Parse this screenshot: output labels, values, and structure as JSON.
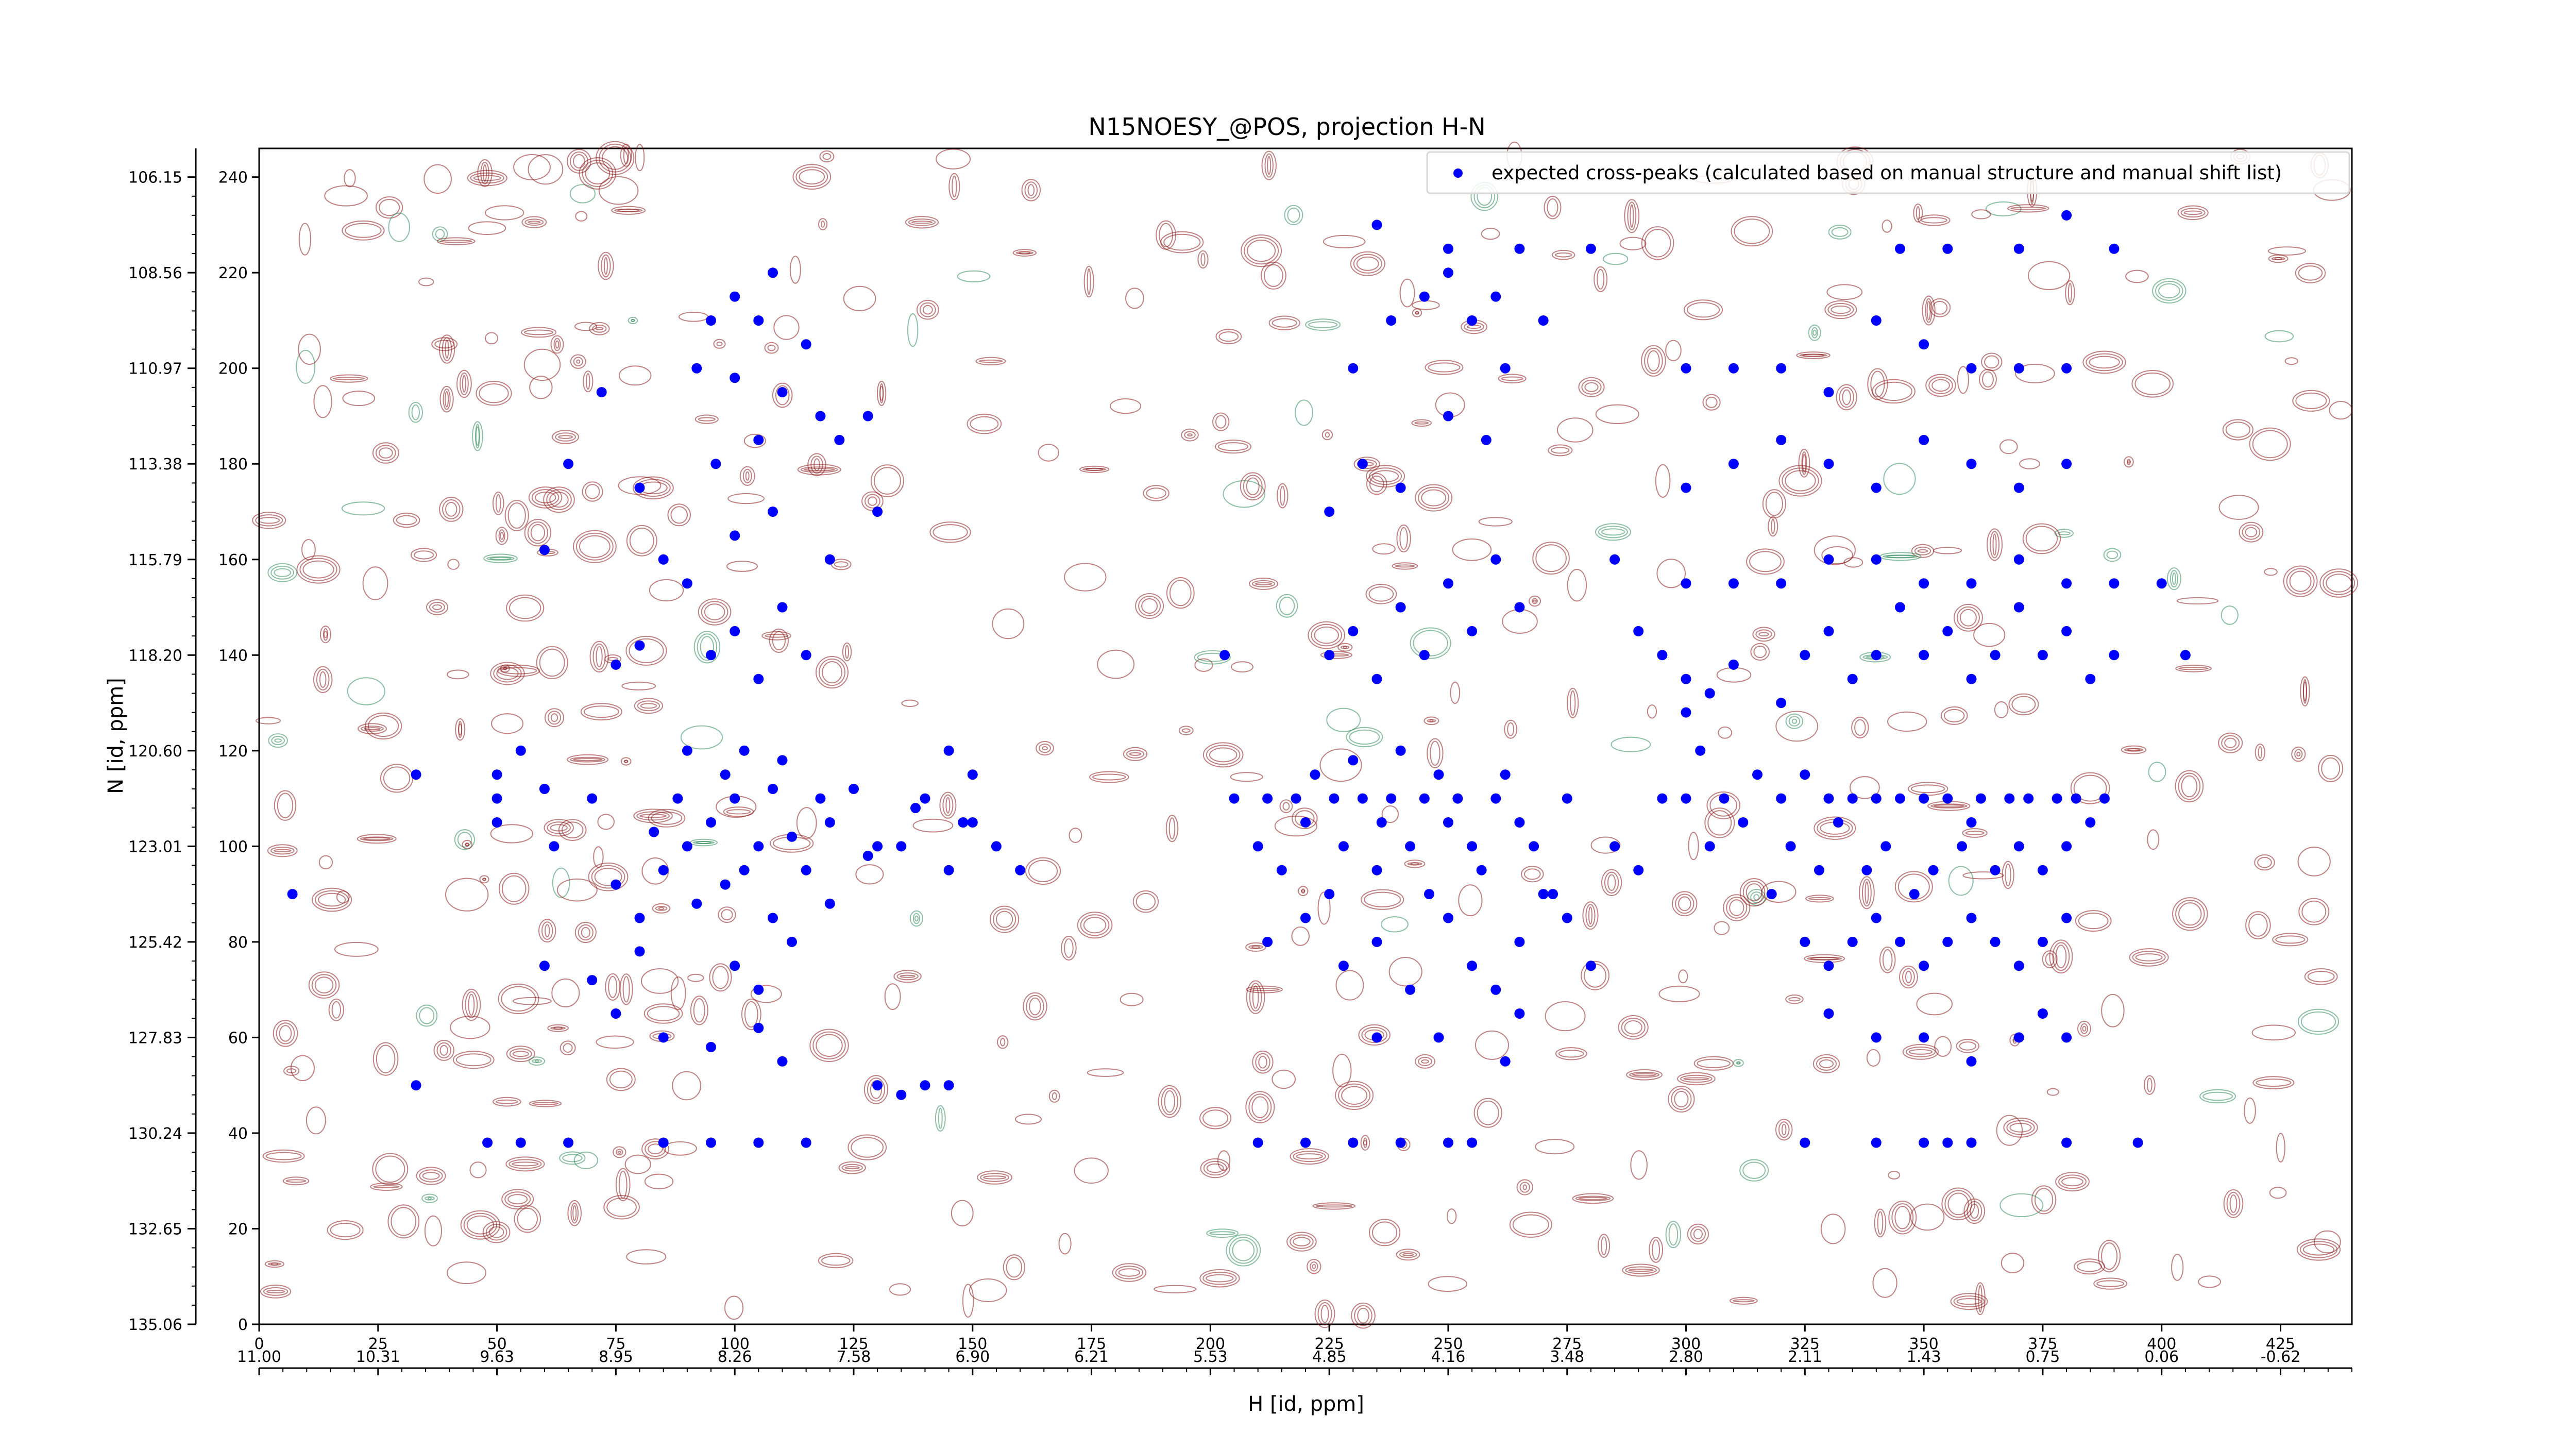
{
  "chart_data": {
    "type": "scatter",
    "title": "N15NOESY_@POS, projection H-N",
    "xlabel_primary": "",
    "xlabel_secondary": "H [id, ppm]",
    "ylabel_left": "N [id, ppm]",
    "x_index_range": [
      0,
      440
    ],
    "y_index_range": [
      0,
      246
    ],
    "x_ticks_index": [
      "0",
      "25",
      "50",
      "75",
      "100",
      "125",
      "150",
      "175",
      "200",
      "225",
      "250",
      "275",
      "300",
      "325",
      "350",
      "375",
      "400",
      "425"
    ],
    "x_ticks_ppm": [
      "11.00",
      "10.31",
      "9.63",
      "8.95",
      "8.26",
      "7.58",
      "6.90",
      "6.21",
      "5.53",
      "4.85",
      "4.16",
      "3.48",
      "2.80",
      "2.11",
      "1.43",
      "0.75",
      "0.06",
      "-0.62"
    ],
    "y_ticks_index": [
      "0",
      "20",
      "40",
      "60",
      "80",
      "100",
      "120",
      "140",
      "160",
      "180",
      "200",
      "220",
      "240"
    ],
    "y_ticks_ppm": [
      "135.06",
      "132.65",
      "130.24",
      "127.83",
      "125.42",
      "123.01",
      "120.60",
      "118.20",
      "115.79",
      "113.38",
      "110.97",
      "108.56",
      "106.15"
    ],
    "legend": {
      "position": "top-right",
      "label": "expected cross-peaks (calculated based on manual structure and manual shift list)",
      "marker_color": "#0000ff"
    },
    "colors": {
      "positive_contours": "#8b1a1a",
      "negative_contours": "#2e8b57",
      "peaks": "#0000ff"
    },
    "series": [
      {
        "name": "expected cross-peaks (calculated based on manual structure and manual shift list)",
        "points": [
          [
            7,
            90
          ],
          [
            33,
            50
          ],
          [
            33,
            115
          ],
          [
            48,
            38
          ],
          [
            50,
            105
          ],
          [
            50,
            110
          ],
          [
            50,
            115
          ],
          [
            55,
            120
          ],
          [
            60,
            75
          ],
          [
            60,
            112
          ],
          [
            62,
            100
          ],
          [
            70,
            110
          ],
          [
            75,
            92
          ],
          [
            80,
            85
          ],
          [
            83,
            103
          ],
          [
            85,
            95
          ],
          [
            88,
            110
          ],
          [
            90,
            100
          ],
          [
            90,
            120
          ],
          [
            92,
            88
          ],
          [
            95,
            105
          ],
          [
            98,
            115
          ],
          [
            98,
            92
          ],
          [
            100,
            110
          ],
          [
            102,
            120
          ],
          [
            102,
            95
          ],
          [
            105,
            100
          ],
          [
            108,
            112
          ],
          [
            108,
            85
          ],
          [
            110,
            118
          ],
          [
            112,
            102
          ],
          [
            115,
            95
          ],
          [
            118,
            110
          ],
          [
            120,
            105
          ],
          [
            125,
            112
          ],
          [
            128,
            98
          ],
          [
            135,
            100
          ],
          [
            140,
            110
          ],
          [
            145,
            95
          ],
          [
            148,
            105
          ],
          [
            150,
            115
          ],
          [
            95,
            140
          ],
          [
            100,
            145
          ],
          [
            105,
            135
          ],
          [
            110,
            150
          ],
          [
            115,
            140
          ],
          [
            120,
            160
          ],
          [
            90,
            155
          ],
          [
            85,
            160
          ],
          [
            80,
            142
          ],
          [
            75,
            138
          ],
          [
            100,
            165
          ],
          [
            108,
            170
          ],
          [
            96,
            180
          ],
          [
            105,
            185
          ],
          [
            92,
            200
          ],
          [
            100,
            198
          ],
          [
            110,
            195
          ],
          [
            115,
            205
          ],
          [
            95,
            210
          ],
          [
            100,
            215
          ],
          [
            105,
            210
          ],
          [
            108,
            220
          ],
          [
            72,
            195
          ],
          [
            65,
            180
          ],
          [
            60,
            162
          ],
          [
            118,
            190
          ],
          [
            122,
            185
          ],
          [
            128,
            190
          ],
          [
            130,
            170
          ],
          [
            80,
            175
          ],
          [
            85,
            60
          ],
          [
            95,
            58
          ],
          [
            105,
            62
          ],
          [
            110,
            55
          ],
          [
            130,
            50
          ],
          [
            140,
            50
          ],
          [
            135,
            48
          ],
          [
            145,
            50
          ],
          [
            55,
            38
          ],
          [
            65,
            38
          ],
          [
            85,
            38
          ],
          [
            95,
            38
          ],
          [
            105,
            38
          ],
          [
            115,
            38
          ],
          [
            75,
            65
          ],
          [
            70,
            72
          ],
          [
            80,
            78
          ],
          [
            100,
            75
          ],
          [
            105,
            70
          ],
          [
            112,
            80
          ],
          [
            120,
            88
          ],
          [
            130,
            100
          ],
          [
            138,
            108
          ],
          [
            145,
            120
          ],
          [
            150,
            105
          ],
          [
            155,
            100
          ],
          [
            160,
            95
          ],
          [
            203,
            140
          ],
          [
            205,
            110
          ],
          [
            210,
            100
          ],
          [
            212,
            110
          ],
          [
            215,
            95
          ],
          [
            218,
            110
          ],
          [
            220,
            105
          ],
          [
            222,
            115
          ],
          [
            225,
            90
          ],
          [
            226,
            110
          ],
          [
            228,
            100
          ],
          [
            230,
            118
          ],
          [
            232,
            110
          ],
          [
            235,
            95
          ],
          [
            236,
            105
          ],
          [
            238,
            110
          ],
          [
            240,
            120
          ],
          [
            242,
            100
          ],
          [
            245,
            110
          ],
          [
            246,
            90
          ],
          [
            248,
            115
          ],
          [
            250,
            105
          ],
          [
            252,
            110
          ],
          [
            255,
            100
          ],
          [
            257,
            95
          ],
          [
            260,
            110
          ],
          [
            262,
            115
          ],
          [
            265,
            105
          ],
          [
            268,
            100
          ],
          [
            272,
            90
          ],
          [
            275,
            110
          ],
          [
            212,
            80
          ],
          [
            220,
            85
          ],
          [
            228,
            75
          ],
          [
            235,
            80
          ],
          [
            242,
            70
          ],
          [
            250,
            85
          ],
          [
            255,
            75
          ],
          [
            260,
            70
          ],
          [
            265,
            80
          ],
          [
            225,
            140
          ],
          [
            230,
            145
          ],
          [
            235,
            135
          ],
          [
            240,
            150
          ],
          [
            245,
            140
          ],
          [
            250,
            155
          ],
          [
            255,
            145
          ],
          [
            260,
            160
          ],
          [
            265,
            150
          ],
          [
            225,
            170
          ],
          [
            232,
            180
          ],
          [
            240,
            175
          ],
          [
            250,
            190
          ],
          [
            258,
            185
          ],
          [
            262,
            200
          ],
          [
            230,
            200
          ],
          [
            238,
            210
          ],
          [
            245,
            215
          ],
          [
            250,
            220
          ],
          [
            255,
            210
          ],
          [
            260,
            215
          ],
          [
            270,
            210
          ],
          [
            235,
            230
          ],
          [
            250,
            225
          ],
          [
            265,
            225
          ],
          [
            280,
            225
          ],
          [
            210,
            38
          ],
          [
            220,
            38
          ],
          [
            230,
            38
          ],
          [
            240,
            38
          ],
          [
            250,
            38
          ],
          [
            255,
            38
          ],
          [
            262,
            55
          ],
          [
            248,
            60
          ],
          [
            235,
            60
          ],
          [
            265,
            65
          ],
          [
            270,
            90
          ],
          [
            275,
            85
          ],
          [
            280,
            75
          ],
          [
            285,
            100
          ],
          [
            290,
            95
          ],
          [
            295,
            110
          ],
          [
            300,
            110
          ],
          [
            303,
            120
          ],
          [
            305,
            100
          ],
          [
            308,
            110
          ],
          [
            312,
            105
          ],
          [
            315,
            115
          ],
          [
            318,
            90
          ],
          [
            320,
            110
          ],
          [
            322,
            100
          ],
          [
            325,
            115
          ],
          [
            328,
            95
          ],
          [
            330,
            110
          ],
          [
            332,
            105
          ],
          [
            335,
            110
          ],
          [
            338,
            95
          ],
          [
            340,
            110
          ],
          [
            342,
            100
          ],
          [
            345,
            110
          ],
          [
            348,
            90
          ],
          [
            350,
            110
          ],
          [
            352,
            95
          ],
          [
            355,
            110
          ],
          [
            358,
            100
          ],
          [
            360,
            105
          ],
          [
            362,
            110
          ],
          [
            365,
            95
          ],
          [
            368,
            110
          ],
          [
            370,
            100
          ],
          [
            372,
            110
          ],
          [
            375,
            95
          ],
          [
            378,
            110
          ],
          [
            380,
            100
          ],
          [
            382,
            110
          ],
          [
            385,
            105
          ],
          [
            388,
            110
          ],
          [
            325,
            80
          ],
          [
            330,
            75
          ],
          [
            335,
            80
          ],
          [
            340,
            85
          ],
          [
            345,
            80
          ],
          [
            350,
            75
          ],
          [
            355,
            80
          ],
          [
            360,
            85
          ],
          [
            365,
            80
          ],
          [
            370,
            75
          ],
          [
            375,
            80
          ],
          [
            380,
            85
          ],
          [
            320,
            130
          ],
          [
            325,
            140
          ],
          [
            330,
            145
          ],
          [
            335,
            135
          ],
          [
            340,
            140
          ],
          [
            345,
            150
          ],
          [
            350,
            140
          ],
          [
            355,
            145
          ],
          [
            360,
            135
          ],
          [
            365,
            140
          ],
          [
            370,
            150
          ],
          [
            375,
            140
          ],
          [
            380,
            145
          ],
          [
            385,
            135
          ],
          [
            390,
            140
          ],
          [
            300,
            155
          ],
          [
            310,
            155
          ],
          [
            320,
            155
          ],
          [
            330,
            160
          ],
          [
            340,
            160
          ],
          [
            350,
            155
          ],
          [
            360,
            155
          ],
          [
            370,
            160
          ],
          [
            380,
            155
          ],
          [
            390,
            155
          ],
          [
            400,
            155
          ],
          [
            300,
            175
          ],
          [
            310,
            180
          ],
          [
            320,
            185
          ],
          [
            330,
            180
          ],
          [
            340,
            175
          ],
          [
            350,
            185
          ],
          [
            360,
            180
          ],
          [
            370,
            175
          ],
          [
            380,
            180
          ],
          [
            300,
            200
          ],
          [
            310,
            200
          ],
          [
            320,
            200
          ],
          [
            330,
            195
          ],
          [
            340,
            210
          ],
          [
            350,
            205
          ],
          [
            360,
            200
          ],
          [
            370,
            200
          ],
          [
            380,
            200
          ],
          [
            325,
            38
          ],
          [
            340,
            38
          ],
          [
            350,
            38
          ],
          [
            355,
            38
          ],
          [
            360,
            38
          ],
          [
            380,
            38
          ],
          [
            395,
            38
          ],
          [
            330,
            65
          ],
          [
            340,
            60
          ],
          [
            350,
            60
          ],
          [
            360,
            55
          ],
          [
            370,
            60
          ],
          [
            375,
            65
          ],
          [
            380,
            60
          ],
          [
            285,
            160
          ],
          [
            290,
            145
          ],
          [
            295,
            140
          ],
          [
            300,
            135
          ],
          [
            300,
            128
          ],
          [
            305,
            132
          ],
          [
            310,
            138
          ],
          [
            345,
            225
          ],
          [
            355,
            225
          ],
          [
            370,
            225
          ],
          [
            380,
            232
          ],
          [
            390,
            225
          ],
          [
            405,
            140
          ]
        ]
      }
    ]
  }
}
